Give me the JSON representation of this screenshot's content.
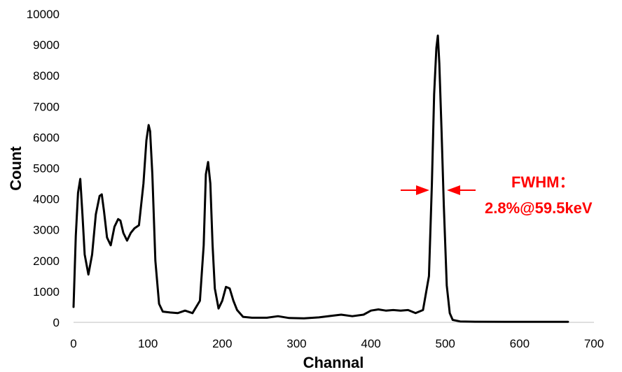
{
  "chart_data": {
    "type": "line",
    "xlabel": "Channal",
    "ylabel": "Count",
    "xlim": [
      0,
      700
    ],
    "ylim": [
      0,
      10000
    ],
    "x_ticks": [
      "0",
      "100",
      "200",
      "300",
      "400",
      "500",
      "600",
      "700"
    ],
    "y_ticks": [
      "0",
      "1000",
      "2000",
      "3000",
      "4000",
      "5000",
      "6000",
      "7000",
      "8000",
      "9000",
      "10000"
    ],
    "grid": false,
    "legend": "none",
    "line_color": "#000000",
    "series": [
      {
        "x": [
          0,
          3,
          6,
          9,
          12,
          15,
          20,
          25,
          30,
          35,
          38,
          41,
          45,
          50,
          55,
          60,
          63,
          67,
          72,
          77,
          82,
          88,
          94,
          98,
          101,
          103,
          106,
          110,
          115,
          120,
          130,
          140,
          150,
          160,
          170,
          175,
          178,
          181,
          184,
          187,
          190,
          195,
          200,
          205,
          210,
          215,
          220,
          228,
          240,
          260,
          275,
          290,
          310,
          330,
          350,
          360,
          375,
          390,
          400,
          410,
          420,
          430,
          440,
          450,
          460,
          470,
          478,
          482,
          485,
          488,
          490,
          492,
          495,
          498,
          502,
          506,
          510,
          520,
          540,
          580,
          620,
          665
        ],
        "y": [
          500,
          2800,
          4200,
          4650,
          3500,
          2200,
          1550,
          2200,
          3500,
          4100,
          4150,
          3600,
          2750,
          2500,
          3100,
          3350,
          3300,
          2900,
          2650,
          2900,
          3050,
          3150,
          4500,
          5900,
          6400,
          6200,
          4800,
          2000,
          600,
          350,
          320,
          300,
          380,
          300,
          700,
          2500,
          4800,
          5200,
          4500,
          2500,
          1100,
          450,
          700,
          1150,
          1100,
          700,
          400,
          180,
          150,
          150,
          200,
          140,
          130,
          160,
          220,
          250,
          200,
          250,
          380,
          420,
          380,
          400,
          380,
          400,
          300,
          400,
          1500,
          4500,
          7400,
          8900,
          9300,
          8400,
          6200,
          3800,
          1200,
          300,
          80,
          30,
          20,
          15,
          15,
          15
        ]
      }
    ],
    "annotations": [
      "FWHM：",
      "2.8%@59.5keV"
    ],
    "annotation_color": "#ff0000"
  }
}
